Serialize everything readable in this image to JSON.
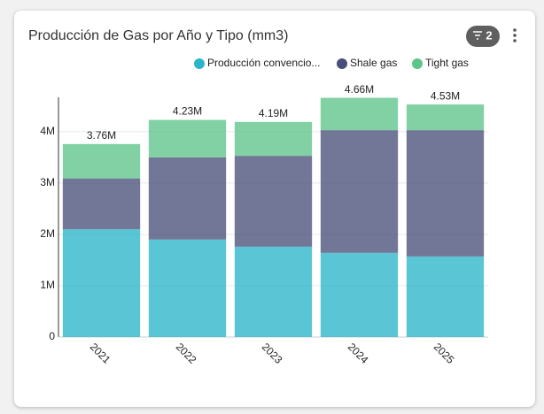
{
  "chart_data": {
    "type": "stacked_bar",
    "title": "Producción de Gas por Año y Tipo (mm3)",
    "filter_badge": "2",
    "categories": [
      "2021",
      "2022",
      "2023",
      "2024",
      "2025"
    ],
    "series": [
      {
        "name": "Producción convencio...",
        "color": "#2bb5c9",
        "values": [
          2100000,
          1900000,
          1760000,
          1640000,
          1570000
        ]
      },
      {
        "name": "Shale gas",
        "color": "#4a4f7a",
        "values": [
          990000,
          1600000,
          1770000,
          2390000,
          2460000
        ]
      },
      {
        "name": "Tight gas",
        "color": "#5dc48a",
        "values": [
          670000,
          730000,
          660000,
          630000,
          500000
        ]
      }
    ],
    "totals": [
      3760000,
      4230000,
      4190000,
      4660000,
      4530000
    ],
    "total_labels": [
      "3.76M",
      "4.23M",
      "4.19M",
      "4.66M",
      "4.53M"
    ],
    "ylim": [
      0,
      4670000
    ],
    "yticks": [
      0,
      {
        "value": 1000000,
        "label": "1M"
      },
      {
        "value": 2000000,
        "label": "2M"
      },
      {
        "value": 3000000,
        "label": "3M"
      },
      {
        "value": 4000000,
        "label": "4M"
      }
    ],
    "grid": true
  }
}
